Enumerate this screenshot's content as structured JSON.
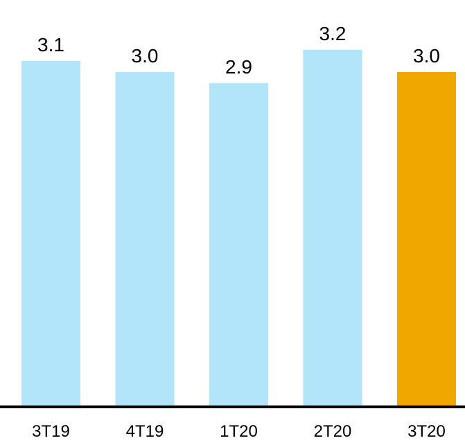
{
  "chart_data": {
    "type": "bar",
    "categories": [
      "3T19",
      "4T19",
      "1T20",
      "2T20",
      "3T20"
    ],
    "values": [
      3.1,
      3.0,
      2.9,
      3.2,
      3.0
    ],
    "value_labels": [
      "3.1",
      "3.0",
      "2.9",
      "3.2",
      "3.0"
    ],
    "title": "",
    "xlabel": "",
    "ylabel": "",
    "grid": false,
    "legend": "none",
    "colors": {
      "default_bar": "#B3E5FA",
      "highlight_bar": "#F0A800",
      "axis": "#000000"
    },
    "highlight_index": 4
  }
}
